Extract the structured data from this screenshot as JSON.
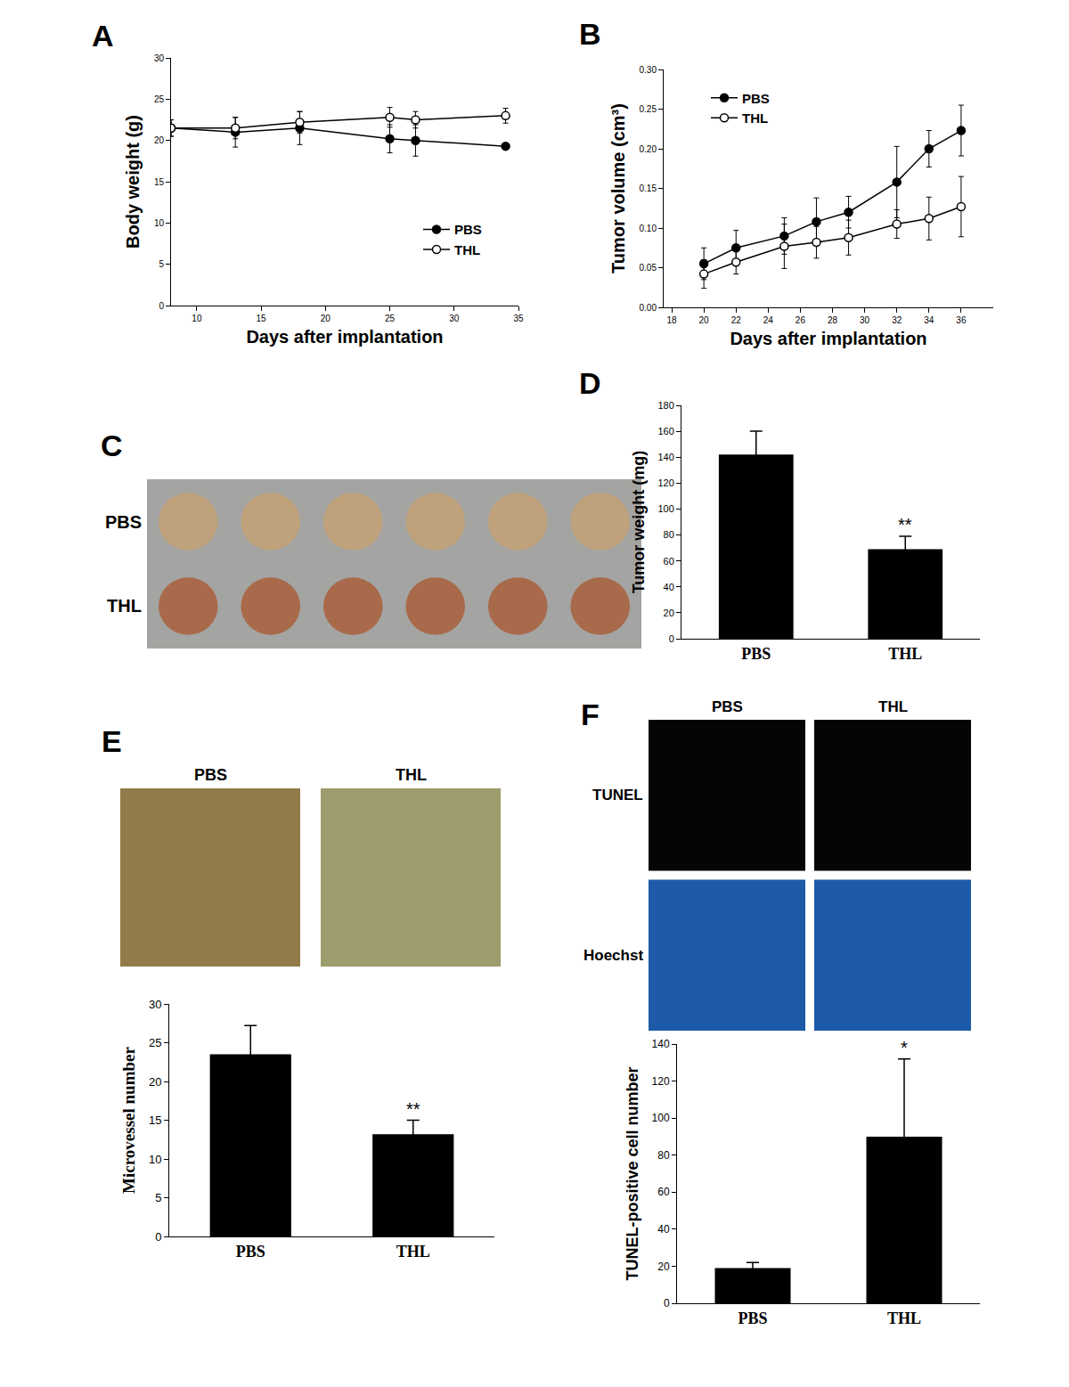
{
  "chart_data": [
    {
      "label": "A",
      "type": "line",
      "x_label": "Days after implantation",
      "y_label": "Body weight (g)",
      "xlim": [
        8,
        35
      ],
      "xticks": [
        10,
        15,
        20,
        25,
        30,
        35
      ],
      "ylim": [
        0,
        30
      ],
      "yticks": [
        0,
        5,
        10,
        15,
        20,
        25,
        30
      ],
      "legend": "bottom right",
      "x": [
        8,
        13,
        18,
        25,
        27,
        34
      ],
      "series": [
        {
          "name": "PBS",
          "color": "#000000",
          "marker": "circle",
          "values": [
            21.5,
            21.0,
            21.5,
            20.2,
            20.0,
            19.3
          ],
          "errors": [
            1.0,
            1.8,
            2.0,
            1.7,
            1.9,
            0
          ]
        },
        {
          "name": "THL",
          "color": "#000000",
          "marker": "circle-open",
          "values": [
            21.5,
            21.5,
            22.2,
            22.8,
            22.5,
            23.0
          ],
          "errors": [
            1.0,
            1.3,
            1.3,
            1.2,
            1.0,
            0.9
          ]
        }
      ]
    },
    {
      "label": "B",
      "type": "line",
      "x_label": "Days after implantation",
      "y_label": "Tumor volume (cm³)",
      "xlim": [
        17.5,
        38
      ],
      "xticks": [
        18,
        20,
        22,
        24,
        26,
        28,
        30,
        32,
        34,
        36
      ],
      "ylim": [
        0,
        0.3
      ],
      "yticks": [
        {
          "value": 0,
          "label": "0.00"
        },
        {
          "value": 0.05,
          "label": "0.05"
        },
        {
          "value": 0.1,
          "label": "0.10"
        },
        {
          "value": 0.15,
          "label": "0.15"
        },
        {
          "value": 0.2,
          "label": "0.20"
        },
        {
          "value": 0.25,
          "label": "0.25"
        },
        {
          "value": 0.3,
          "label": "0.30"
        }
      ],
      "legend": "top left",
      "x": [
        20,
        22,
        25,
        27,
        29,
        32,
        34,
        36
      ],
      "series": [
        {
          "name": "PBS",
          "color": "#000000",
          "marker": "circle",
          "values": [
            0.055,
            0.075,
            0.09,
            0.108,
            0.12,
            0.158,
            0.2,
            0.223
          ],
          "errors": [
            0.02,
            0.022,
            0.023,
            0.03,
            0.02,
            0.045,
            0.023,
            0.032
          ]
        },
        {
          "name": "THL",
          "color": "#000000",
          "marker": "circle-open",
          "values": [
            0.042,
            0.057,
            0.077,
            0.082,
            0.088,
            0.105,
            0.112,
            0.127
          ],
          "errors": [
            0.018,
            0.015,
            0.028,
            0.02,
            0.022,
            0.018,
            0.027,
            0.038
          ]
        }
      ]
    },
    {
      "label": "C",
      "type": "image",
      "rows": [
        "PBS",
        "THL"
      ]
    },
    {
      "label": "D",
      "type": "bar",
      "y_label": "Tumor weight (mg)",
      "categories": [
        "PBS",
        "THL"
      ],
      "values": [
        142,
        69
      ],
      "errors": [
        18,
        10
      ],
      "color": "#000000",
      "ylim": [
        0,
        180
      ],
      "yticks": [
        0,
        20,
        40,
        60,
        80,
        100,
        120,
        140,
        160,
        180
      ],
      "annotations": [
        {
          "category": "THL",
          "text": "**"
        }
      ]
    },
    {
      "label": "E",
      "type": "image",
      "columns": [
        "PBS",
        "THL"
      ]
    },
    {
      "type": "bar",
      "y_label": "Microvessel number",
      "categories": [
        "PBS",
        "THL"
      ],
      "values": [
        23.5,
        13.2
      ],
      "errors": [
        3.7,
        1.8
      ],
      "color": "#000000",
      "ylim": [
        0,
        30
      ],
      "yticks": [
        0,
        5,
        10,
        15,
        20,
        25,
        30
      ],
      "annotations": [
        {
          "category": "THL",
          "text": "**"
        }
      ]
    },
    {
      "label": "F",
      "type": "image",
      "columns": [
        "PBS",
        "THL"
      ],
      "rows": [
        "TUNEL",
        "Hoechst"
      ]
    },
    {
      "type": "bar",
      "y_label": "TUNEL-positive cell number",
      "categories": [
        "PBS",
        "THL"
      ],
      "values": [
        19,
        90
      ],
      "errors": [
        3,
        42
      ],
      "color": "#000000",
      "ylim": [
        0,
        140
      ],
      "yticks": [
        0,
        20,
        40,
        60,
        80,
        100,
        120,
        140
      ],
      "annotations": [
        {
          "category": "THL",
          "text": "*"
        }
      ]
    }
  ]
}
